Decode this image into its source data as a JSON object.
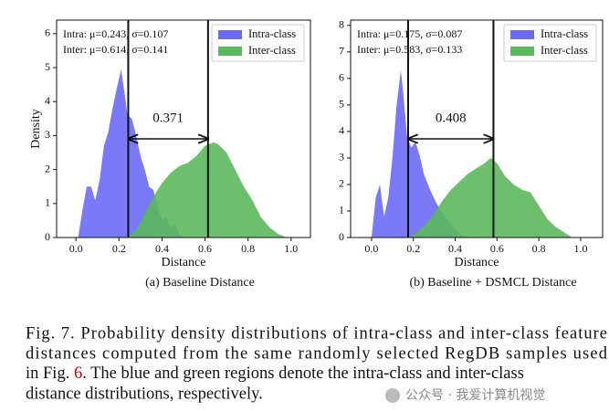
{
  "chart_data": [
    {
      "type": "area",
      "xlabel": "Distance",
      "ylabel": "Density",
      "subcaption": "(a) Baseline Distance",
      "stats": [
        "Intra: μ=0.243, σ=0.107",
        "Inter: μ=0.614, σ=0.141"
      ],
      "annotation": "0.371",
      "vlines": [
        0.243,
        0.614
      ],
      "legend": "upper right",
      "xlim": [
        -0.09,
        1.09
      ],
      "ylim": [
        0,
        6.4
      ],
      "xticks": [
        {
          "value": 0,
          "label": "0.0"
        },
        0.2,
        0.4,
        0.6,
        0.8,
        {
          "value": 1,
          "label": "1.0"
        }
      ],
      "yticks": [
        0,
        1,
        2,
        3,
        4,
        5,
        6
      ],
      "series": [
        {
          "name": "Intra-class",
          "color": "#6b6bf7",
          "x": [
            0.01,
            0.03,
            0.05,
            0.07,
            0.09,
            0.11,
            0.13,
            0.15,
            0.17,
            0.19,
            0.21,
            0.22,
            0.24,
            0.26,
            0.28,
            0.3,
            0.32,
            0.34,
            0.36,
            0.38,
            0.4,
            0.42,
            0.44,
            0.46,
            0.48,
            0.5
          ],
          "values": [
            0,
            0.8,
            1.5,
            1.5,
            1.1,
            1.7,
            2.7,
            3.1,
            3.8,
            4.4,
            4.95,
            4.5,
            3.6,
            3.5,
            3.0,
            2.4,
            2.0,
            1.5,
            1.4,
            0.9,
            0.5,
            0.6,
            0.3,
            0.4,
            0.1,
            0
          ]
        },
        {
          "name": "Inter-class",
          "color": "#5cb85c",
          "x": [
            0.24,
            0.28,
            0.32,
            0.36,
            0.4,
            0.44,
            0.48,
            0.52,
            0.56,
            0.6,
            0.64,
            0.66,
            0.7,
            0.74,
            0.78,
            0.82,
            0.86,
            0.9,
            0.94,
            0.98
          ],
          "values": [
            0,
            0.2,
            0.7,
            1.2,
            1.6,
            1.9,
            2.1,
            2.2,
            2.4,
            2.7,
            2.8,
            2.75,
            2.5,
            2.0,
            1.5,
            1.1,
            0.6,
            0.3,
            0.1,
            0
          ]
        }
      ]
    },
    {
      "type": "area",
      "xlabel": "Distance",
      "ylabel": "Density",
      "subcaption": "(b) Baseline + DSMCL Distance",
      "stats": [
        "Intra: μ=0.175, σ=0.087",
        "Inter: μ=0.583, σ=0.133"
      ],
      "annotation": "0.408",
      "vlines": [
        0.175,
        0.583
      ],
      "legend": "upper right",
      "xlim": [
        -0.1,
        1.105
      ],
      "ylim": [
        0,
        8.2
      ],
      "xticks": [
        {
          "value": 0,
          "label": "0.0"
        },
        0.2,
        0.4,
        0.6,
        0.8,
        {
          "value": 1,
          "label": "1.0"
        }
      ],
      "yticks": [
        0,
        1,
        2,
        3,
        4,
        5,
        6,
        7,
        8
      ],
      "series": [
        {
          "name": "Intra-class",
          "color": "#6b6bf7",
          "x": [
            0.0,
            0.02,
            0.04,
            0.06,
            0.08,
            0.1,
            0.12,
            0.14,
            0.15,
            0.17,
            0.19,
            0.21,
            0.23,
            0.25,
            0.28,
            0.31,
            0.34,
            0.37,
            0.4,
            0.44
          ],
          "values": [
            0,
            1.5,
            2.0,
            0.8,
            1.5,
            3.0,
            5.0,
            6.3,
            5.6,
            3.8,
            3.4,
            3.6,
            3.1,
            2.4,
            1.8,
            1.3,
            0.9,
            0.6,
            0.3,
            0
          ]
        },
        {
          "name": "Inter-class",
          "color": "#5cb85c",
          "x": [
            0.18,
            0.22,
            0.26,
            0.3,
            0.34,
            0.38,
            0.42,
            0.46,
            0.5,
            0.54,
            0.57,
            0.6,
            0.64,
            0.68,
            0.72,
            0.76,
            0.8,
            0.84,
            0.88,
            0.92,
            0.96
          ],
          "values": [
            0,
            0.2,
            0.5,
            0.9,
            1.4,
            1.8,
            2.1,
            2.4,
            2.6,
            2.8,
            3.0,
            2.8,
            2.3,
            2.0,
            1.8,
            1.7,
            1.2,
            0.7,
            0.4,
            0.2,
            0
          ]
        }
      ]
    }
  ],
  "caption": {
    "lines": [
      [
        "Fig. 7.  Probability density distributions of intra-class and inter-class feature"
      ],
      [
        "distances computed from the same randomly selected RegDB samples used"
      ],
      [
        "in Fig. ",
        "6",
        ". The blue and green regions denote the intra-class and inter-class"
      ],
      [
        "distance distributions, respectively."
      ]
    ]
  },
  "watermark": "公众号 · 我爱计算机视觉"
}
